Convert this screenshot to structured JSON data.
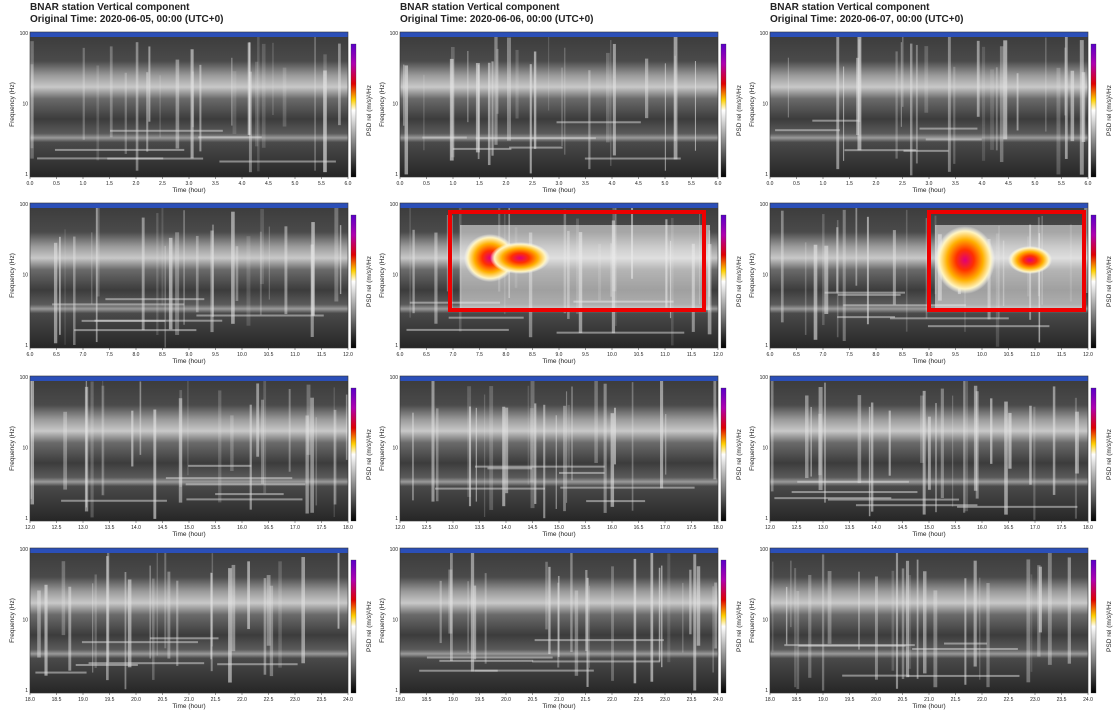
{
  "columns": [
    {
      "title": "BNAR station Vertical component",
      "subtitle": "Original Time: 2020-06-05, 00:00 (UTC+0)"
    },
    {
      "title": "BNAR station Vertical component",
      "subtitle": "Original Time: 2020-06-06, 00:00 (UTC+0)"
    },
    {
      "title": "BNAR station Vertical component",
      "subtitle": "Original Time: 2020-06-07, 00:00 (UTC+0)"
    }
  ],
  "rows": [
    {
      "xticks": [
        "0.0",
        "0.5",
        "1.0",
        "1.5",
        "2.0",
        "2.5",
        "3.0",
        "3.5",
        "4.0",
        "4.5",
        "5.0",
        "5.5",
        "6.0"
      ]
    },
    {
      "xticks": [
        "6.0",
        "6.5",
        "7.0",
        "7.5",
        "8.0",
        "8.5",
        "9.0",
        "9.5",
        "10.0",
        "10.5",
        "11.0",
        "11.5",
        "12.0"
      ]
    },
    {
      "xticks": [
        "12.0",
        "12.5",
        "13.0",
        "13.5",
        "14.0",
        "14.5",
        "15.0",
        "15.5",
        "16.0",
        "16.5",
        "17.0",
        "17.5",
        "18.0"
      ]
    },
    {
      "xticks": [
        "18.0",
        "18.5",
        "19.0",
        "19.5",
        "20.0",
        "20.5",
        "21.0",
        "21.5",
        "22.0",
        "22.5",
        "23.0",
        "23.5",
        "24.0"
      ]
    }
  ],
  "x_label": "Time (hour)",
  "y_label": "Frequency (Hz)",
  "y_ticks": [
    "100",
    "10",
    "1"
  ],
  "colorbar_label": "PSD rel (m/s)²/Hz"
}
